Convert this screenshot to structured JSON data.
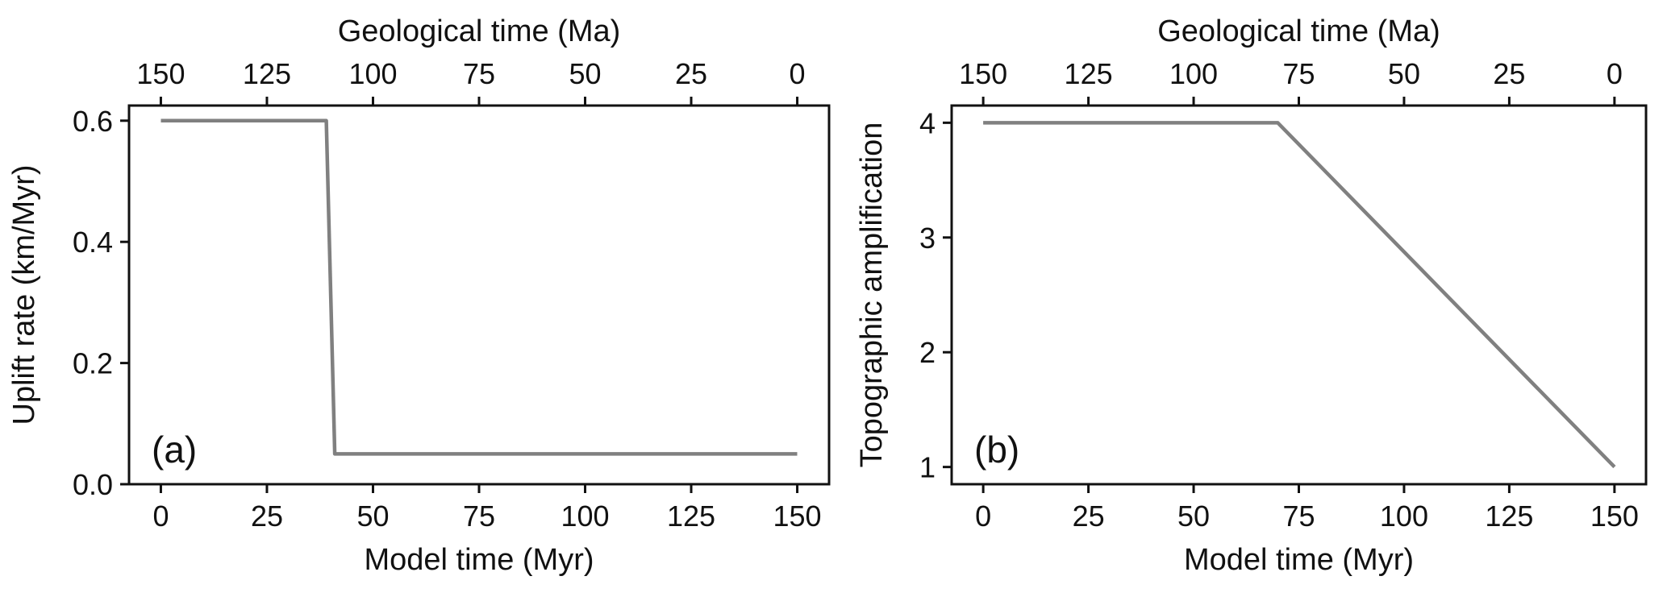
{
  "chart_data": [
    {
      "type": "line",
      "panel_label": "(a)",
      "xlabel": "Model time (Myr)",
      "ylabel": "Uplift rate (km/Myr)",
      "top_xlabel": "Geological time (Ma)",
      "xlim": [
        -7.5,
        157.5
      ],
      "ylim": [
        0.0,
        0.625
      ],
      "xticks": [
        0,
        25,
        50,
        75,
        100,
        125,
        150
      ],
      "xtick_labels": [
        "0",
        "25",
        "50",
        "75",
        "100",
        "125",
        "150"
      ],
      "yticks": [
        0.0,
        0.2,
        0.4,
        0.6
      ],
      "ytick_labels": [
        "0.0",
        "0.2",
        "0.4",
        "0.6"
      ],
      "top_xticks": [
        150,
        125,
        100,
        75,
        50,
        25,
        0
      ],
      "top_xtick_labels": [
        "150",
        "125",
        "100",
        "75",
        "50",
        "25",
        "0"
      ],
      "grid": false,
      "color": "#808080",
      "x": [
        0,
        39,
        41,
        150
      ],
      "y": [
        0.6,
        0.6,
        0.05,
        0.05
      ]
    },
    {
      "type": "line",
      "panel_label": "(b)",
      "xlabel": "Model time (Myr)",
      "ylabel": "Topographic amplification",
      "top_xlabel": "Geological time (Ma)",
      "xlim": [
        -7.5,
        157.5
      ],
      "ylim": [
        0.85,
        4.15
      ],
      "xticks": [
        0,
        25,
        50,
        75,
        100,
        125,
        150
      ],
      "xtick_labels": [
        "0",
        "25",
        "50",
        "75",
        "100",
        "125",
        "150"
      ],
      "yticks": [
        1,
        2,
        3,
        4
      ],
      "ytick_labels": [
        "1",
        "2",
        "3",
        "4"
      ],
      "top_xticks": [
        150,
        125,
        100,
        75,
        50,
        25,
        0
      ],
      "top_xtick_labels": [
        "150",
        "125",
        "100",
        "75",
        "50",
        "25",
        "0"
      ],
      "grid": false,
      "color": "#808080",
      "x": [
        0,
        70,
        150
      ],
      "y": [
        4.0,
        4.0,
        1.0
      ]
    }
  ]
}
